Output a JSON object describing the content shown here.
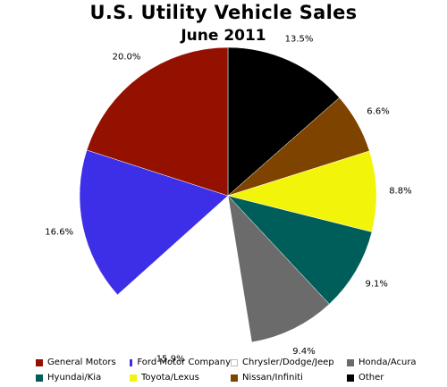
{
  "chart_data": {
    "type": "pie",
    "title": "U.S. Utility Vehicle Sales",
    "subtitle": "June 2011",
    "slices": [
      {
        "label": "General Motors",
        "value": 20.0,
        "value_label": "20.0%",
        "color": "#941100"
      },
      {
        "label": "Ford Motor Company",
        "value": 16.6,
        "value_label": "16.6%",
        "color": "#3d2ee8"
      },
      {
        "label": "Chrysler/Dodge/Jeep",
        "value": 15.9,
        "value_label": "15.9%",
        "color": "#ffffff"
      },
      {
        "label": "Honda/Acura",
        "value": 9.4,
        "value_label": "9.4%",
        "color": "#6b6b6b"
      },
      {
        "label": "Hyundai/Kia",
        "value": 9.1,
        "value_label": "9.1%",
        "color": "#005e5a"
      },
      {
        "label": "Toyota/Lexus",
        "value": 8.8,
        "value_label": "8.8%",
        "color": "#f2f50a"
      },
      {
        "label": "Nissan/Infiniti",
        "value": 6.6,
        "value_label": "6.6%",
        "color": "#7f4300"
      },
      {
        "label": "Other",
        "value": 13.5,
        "value_label": "13.5%",
        "color": "#000000"
      }
    ],
    "start": "12 o'clock",
    "direction": "clockwise, starting with Other",
    "legend_position": "bottom"
  }
}
